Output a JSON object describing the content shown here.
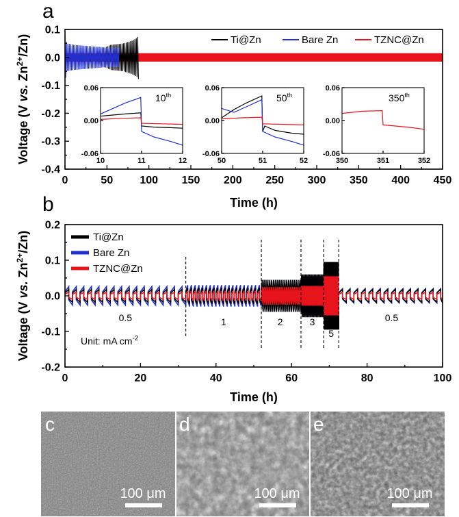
{
  "figure": {
    "panel_a": {
      "letter": "a",
      "xlabel": "Time (h)",
      "ylabel_parts": {
        "pre": "Voltage (V ",
        "vs": "vs.",
        "mid": " Zn",
        "sup": "2+",
        "post": "/Zn)"
      },
      "xticks": [
        "0",
        "50",
        "100",
        "150",
        "200",
        "250",
        "300",
        "350",
        "400",
        "450"
      ],
      "yticks": [
        "0.1",
        "0.0",
        "-0.1",
        "-0.2",
        "-0.3",
        "-0.4"
      ],
      "legend": [
        "Ti@Zn",
        "Bare Zn",
        "TZNC@Zn"
      ]
    },
    "insets": [
      {
        "cycle": "10",
        "sup": "th",
        "xticks": [
          "10",
          "11",
          "12"
        ],
        "yticks": [
          "0.06",
          "0.00",
          "-0.06"
        ]
      },
      {
        "cycle": "50",
        "sup": "th",
        "xticks": [
          "50",
          "51",
          "52"
        ],
        "yticks": [
          "0.06",
          "0.00",
          "-0.06"
        ]
      },
      {
        "cycle": "350",
        "sup": "th",
        "xticks": [
          "350",
          "351",
          "352"
        ],
        "yticks": [
          "0.06",
          "0.00",
          "-0.06"
        ]
      }
    ],
    "panel_b": {
      "letter": "b",
      "xlabel": "Time (h)",
      "ylabel_parts": {
        "pre": "Voltage (V ",
        "vs": "vs.",
        "mid": " Zn",
        "sup": "2+",
        "post": "/Zn)"
      },
      "xticks": [
        "0",
        "20",
        "40",
        "60",
        "80",
        "100"
      ],
      "yticks": [
        "0.2",
        "0.1",
        "0.0",
        "-0.1",
        "-0.2"
      ],
      "legend": [
        "Ti@Zn",
        "Bare Zn",
        "TZNC@Zn"
      ],
      "segment_labels": [
        "0.5",
        "1",
        "2",
        "3",
        "5",
        "0.5"
      ],
      "unit_parts": {
        "pre": "Unit: mA cm",
        "sup": "-2"
      }
    },
    "micrographs": [
      {
        "letter": "c",
        "scale": "100 μm"
      },
      {
        "letter": "d",
        "scale": "100 μm"
      },
      {
        "letter": "e",
        "scale": "100 μm"
      }
    ],
    "colors": {
      "ti_zn": "#000000",
      "bare_zn": "#1f2fd0",
      "tznc_zn": "#e8141b"
    }
  },
  "chart_data": [
    {
      "type": "line",
      "title": "",
      "xlabel": "Time (h)",
      "ylabel": "Voltage (V vs. Zn2+/Zn)",
      "xlim": [
        0,
        450
      ],
      "ylim": [
        -0.4,
        0.1
      ],
      "grid": false,
      "legend_position": "top-right",
      "series": [
        {
          "name": "Ti@Zn",
          "color": "#000000",
          "end_x": 88,
          "x": [
            0,
            10,
            40,
            55,
            70,
            80,
            86,
            88
          ],
          "amplitude": [
            0.02,
            0.015,
            0.025,
            0.045,
            0.05,
            0.06,
            0.07,
            0.08
          ]
        },
        {
          "name": "Bare Zn",
          "color": "#1f2fd0",
          "end_x": 65,
          "x": [
            0,
            2,
            10,
            30,
            50,
            65
          ],
          "amplitude": [
            0.09,
            0.05,
            0.045,
            0.04,
            0.035,
            0.035
          ]
        },
        {
          "name": "TZNC@Zn",
          "color": "#e8141b",
          "end_x": 450,
          "x": [
            0,
            100,
            200,
            300,
            450
          ],
          "amplitude": [
            0.015,
            0.015,
            0.015,
            0.015,
            0.015
          ]
        }
      ],
      "insets": [
        {
          "xlim": [
            10,
            12
          ],
          "ylim": [
            -0.06,
            0.06
          ],
          "series": [
            {
              "name": "Ti@Zn",
              "x": [
                10,
                10.3,
                10.6,
                10.98,
                11.0,
                11.3,
                11.7,
                12
              ],
              "y": [
                0.008,
                0.01,
                0.012,
                0.014,
                -0.01,
                -0.012,
                -0.013,
                -0.014
              ]
            },
            {
              "name": "Bare Zn",
              "x": [
                10,
                10.3,
                10.6,
                10.98,
                11.0,
                11.3,
                11.7,
                12
              ],
              "y": [
                0.012,
                0.022,
                0.032,
                0.042,
                -0.02,
                -0.03,
                -0.038,
                -0.045
              ]
            },
            {
              "name": "TZNC@Zn",
              "x": [
                10,
                10.5,
                10.98,
                11.0,
                11.5,
                12
              ],
              "y": [
                0.002,
                0.004,
                0.005,
                -0.005,
                -0.006,
                -0.007
              ]
            }
          ]
        },
        {
          "xlim": [
            50,
            52
          ],
          "ylim": [
            -0.06,
            0.06
          ],
          "series": [
            {
              "name": "Ti@Zn",
              "x": [
                50,
                50.3,
                50.6,
                50.98,
                51.0,
                51.05,
                51.3,
                51.7,
                52
              ],
              "y": [
                0.005,
                0.02,
                0.032,
                0.045,
                -0.02,
                -0.01,
                -0.018,
                -0.023,
                -0.025
              ]
            },
            {
              "name": "Bare Zn",
              "x": [
                50,
                50.3,
                50.6,
                50.98,
                51.0,
                51.3,
                51.7,
                52
              ],
              "y": [
                0.022,
                0.015,
                0.025,
                0.038,
                -0.02,
                -0.03,
                -0.038,
                -0.045
              ]
            },
            {
              "name": "TZNC@Zn",
              "x": [
                50,
                50.5,
                50.98,
                51.0,
                51.5,
                52
              ],
              "y": [
                0.003,
                0.005,
                0.006,
                -0.006,
                -0.007,
                -0.008
              ]
            }
          ]
        },
        {
          "xlim": [
            350,
            352
          ],
          "ylim": [
            -0.06,
            0.06
          ],
          "series": [
            {
              "name": "TZNC@Zn",
              "x": [
                350,
                350.5,
                350.98,
                351.0,
                351.3,
                351.7,
                352
              ],
              "y": [
                0.013,
                0.017,
                0.018,
                -0.008,
                -0.01,
                -0.013,
                -0.016
              ]
            }
          ]
        }
      ]
    },
    {
      "type": "line",
      "title": "",
      "xlabel": "Time (h)",
      "ylabel": "Voltage (V vs. Zn2+/Zn)",
      "xlim": [
        0,
        100
      ],
      "ylim": [
        -0.2,
        0.2
      ],
      "grid": false,
      "legend_position": "top-left",
      "segments": [
        {
          "current_density": 0.5,
          "x_range": [
            0,
            32
          ],
          "amplitude": {
            "Ti@Zn": 0.018,
            "Bare Zn": 0.026,
            "TZNC@Zn": 0.01
          }
        },
        {
          "current_density": 1,
          "x_range": [
            32,
            52
          ],
          "amplitude": {
            "Ti@Zn": 0.022,
            "Bare Zn": 0.03,
            "TZNC@Zn": 0.012
          }
        },
        {
          "current_density": 2,
          "x_range": [
            52,
            62.5
          ],
          "amplitude": {
            "Ti@Zn": 0.045,
            "Bare Zn": 0.04,
            "TZNC@Zn": 0.025
          }
        },
        {
          "current_density": 3,
          "x_range": [
            62.5,
            68.5
          ],
          "amplitude": {
            "Ti@Zn": 0.06,
            "Bare Zn": 0.055,
            "TZNC@Zn": 0.028
          }
        },
        {
          "current_density": 5,
          "x_range": [
            68.5,
            72.5
          ],
          "amplitude": {
            "Ti@Zn": 0.095,
            "Bare Zn": 0.075,
            "TZNC@Zn": 0.055
          }
        },
        {
          "current_density": 0.5,
          "x_range": [
            72.5,
            100
          ],
          "amplitude": {
            "Ti@Zn": 0.018,
            "Bare Zn": 0.02,
            "TZNC@Zn": 0.01
          }
        }
      ],
      "boundaries": [
        32,
        52,
        62.5,
        68.5,
        72.5
      ]
    }
  ]
}
